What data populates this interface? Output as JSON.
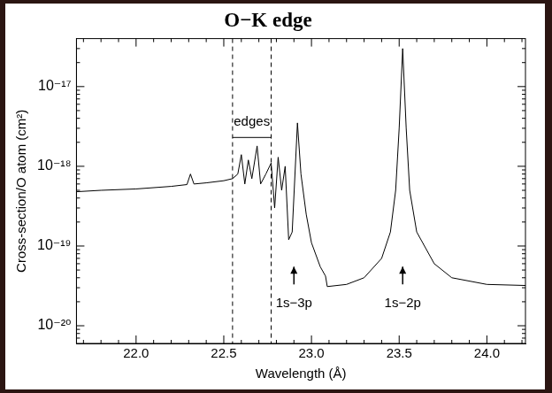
{
  "chart_data": {
    "type": "line",
    "title": "O−K edge",
    "x_label": "Wavelength (Å)",
    "y_label": "Cross-section/O atom (cm²)",
    "color": "#000000",
    "log": "y",
    "grid": false,
    "x": [
      21.66,
      21.8,
      22.0,
      22.2,
      22.29,
      22.31,
      22.33,
      22.4,
      22.5,
      22.55,
      22.58,
      22.6,
      22.62,
      22.64,
      22.66,
      22.69,
      22.71,
      22.74,
      22.77,
      22.79,
      22.81,
      22.83,
      22.85,
      22.87,
      22.89,
      22.92,
      22.94,
      22.97,
      23.0,
      23.05,
      23.08,
      23.09,
      23.2,
      23.3,
      23.4,
      23.45,
      23.48,
      23.5,
      23.52,
      23.54,
      23.56,
      23.6,
      23.7,
      23.8,
      24.0,
      24.22
    ],
    "values": [
      4.8e-19,
      5e-19,
      5.2e-19,
      5.6e-19,
      5.9e-19,
      8e-19,
      6e-19,
      6.2e-19,
      6.6e-19,
      7e-19,
      8e-19,
      1.4e-18,
      6e-19,
      1.2e-18,
      7e-19,
      1.8e-18,
      6e-19,
      8e-19,
      1.1e-18,
      3e-19,
      1.3e-18,
      5e-19,
      1e-18,
      1.2e-19,
      1.5e-19,
      3.5e-18,
      8e-19,
      2.5e-19,
      1.1e-19,
      5.5e-20,
      4.2e-20,
      3.1e-20,
      3.3e-20,
      4e-20,
      7e-20,
      1.5e-19,
      5e-19,
      3e-18,
      3e-17,
      3e-18,
      5e-19,
      1.5e-19,
      6e-20,
      4e-20,
      3.3e-20,
      3.2e-20
    ],
    "xlim": [
      21.66,
      24.22
    ],
    "ylim": [
      6e-21,
      4e-17
    ],
    "xticks": [
      {
        "value": 22,
        "label": "22.0"
      },
      {
        "value": 22.5,
        "label": "22.5"
      },
      {
        "value": 23,
        "label": "23.0"
      },
      {
        "value": 23.5,
        "label": "23.5"
      },
      {
        "value": 24,
        "label": "24.0"
      }
    ],
    "yticks": [
      {
        "value": 1e-20,
        "label": "10⁻²⁰"
      },
      {
        "value": 1e-19,
        "label": "10⁻¹⁹"
      },
      {
        "value": 1e-18,
        "label": "10⁻¹⁸"
      },
      {
        "value": 1e-17,
        "label": "10⁻¹⁷"
      }
    ],
    "vlines": {
      "values": [
        22.55,
        22.77
      ],
      "line_style": "dashed"
    },
    "annotations": [
      {
        "text": "edges",
        "x": 22.66,
        "y": 3.6e-18,
        "line": {
          "x": [
            22.55,
            22.77
          ],
          "y": 2.3e-18
        }
      },
      {
        "text": "1s−3p",
        "x": 22.9,
        "y": 1.9e-20,
        "arrow": [
          3.3e-20,
          5.5e-20
        ]
      },
      {
        "text": "1s−2p",
        "x": 23.52,
        "y": 1.9e-20,
        "arrow": [
          3.3e-20,
          5.5e-20
        ]
      }
    ]
  }
}
